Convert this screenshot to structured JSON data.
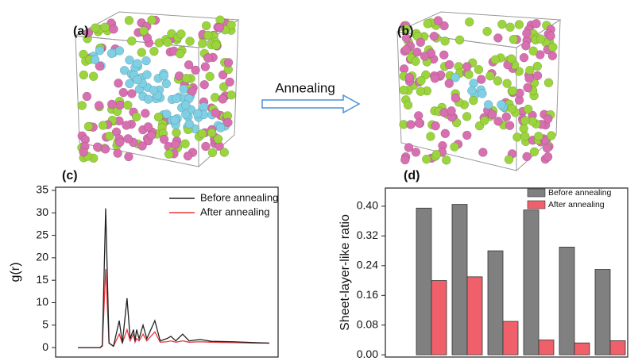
{
  "figure": {
    "panels": [
      "(a)",
      "(b)"
    ],
    "arrow_label": "Annealing"
  },
  "chart_data": [
    {
      "type": "line",
      "label": "(c)",
      "ylabel": "g(r)",
      "x": [
        1.0,
        2.0,
        2.1,
        2.25,
        2.4,
        2.6,
        2.86,
        3.0,
        3.21,
        3.35,
        3.5,
        3.57,
        3.64,
        3.75,
        3.93,
        4.1,
        4.46,
        4.7,
        5.0,
        5.18,
        5.4,
        5.71,
        6.0,
        6.5,
        7.0,
        8.0,
        9.0,
        9.6
      ],
      "series": [
        {
          "name": "Before annealing",
          "color": "#222222",
          "values": [
            0,
            0,
            0.5,
            31,
            1,
            0.3,
            6,
            1,
            11,
            2,
            4,
            1.5,
            4,
            2,
            5,
            2,
            6,
            1.5,
            2,
            2.5,
            1.5,
            3,
            1.5,
            1.8,
            1.4,
            1.3,
            1.1,
            1
          ]
        },
        {
          "name": "After annealing",
          "color": "#e8383d",
          "values": [
            0,
            0,
            0.3,
            17.5,
            1,
            0.3,
            3,
            1,
            4,
            1.5,
            3,
            1.2,
            2,
            1.5,
            3,
            1.5,
            3.5,
            1.2,
            1.3,
            1.5,
            1.2,
            1.5,
            1.2,
            1.3,
            1.2,
            1.1,
            1.0,
            1
          ]
        }
      ],
      "xlim": [
        0,
        10
      ],
      "ylim": [
        -2.1,
        35.7
      ],
      "yticks": [
        0,
        5,
        10,
        15,
        20,
        25,
        30,
        35
      ],
      "legend": "upper right"
    },
    {
      "type": "bar",
      "label": "(d)",
      "ylabel": "Sheet-layer-like ratio",
      "categories": [
        null,
        null,
        null,
        null,
        null,
        null
      ],
      "series": [
        {
          "name": "Before annealing",
          "color": "#808080",
          "values": [
            0.395,
            0.405,
            0.28,
            0.39,
            0.29,
            0.23
          ]
        },
        {
          "name": "After annealing",
          "color": "#f0606a",
          "values": [
            0.2,
            0.21,
            0.09,
            0.04,
            0.032,
            0.038
          ]
        }
      ],
      "ylim": [
        -0.006,
        0.449
      ],
      "yticks": [
        {
          "value": 0,
          "label": "0.00"
        },
        0.08,
        0.16,
        0.24,
        0.32,
        {
          "value": 0.4,
          "label": "0.40"
        }
      ],
      "legend": "upper right"
    }
  ]
}
